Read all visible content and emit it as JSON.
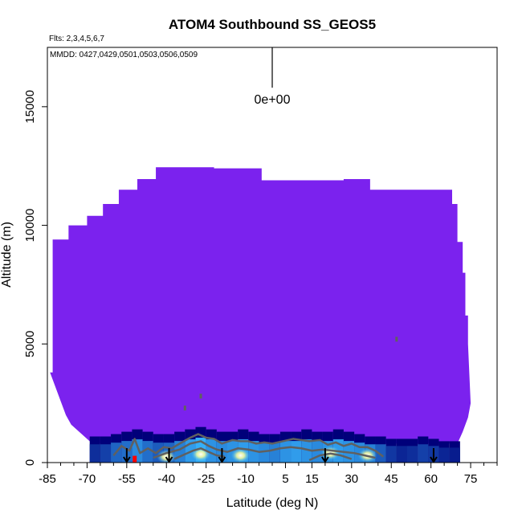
{
  "chart_data": {
    "type": "heatmap",
    "title": "ATOM4 Southbound SS_GEOS5",
    "subtitle_flights": "Flts: 2,3,4,5,6,7",
    "subtitle_dates": "MMDD: 0427,0429,0501,0503,0506,0509",
    "xlabel": "Latitude (deg N)",
    "ylabel": "Altitude (m)",
    "xlim": [
      -85,
      85
    ],
    "ylim": [
      0,
      17500
    ],
    "x_ticks": [
      -85,
      -70,
      -55,
      -40,
      -25,
      -10,
      5,
      15,
      30,
      45,
      60,
      75
    ],
    "y_ticks": [
      0,
      5000,
      10000,
      15000
    ],
    "legend_label": "0e+00",
    "colors": {
      "background_field": "#7b22ee",
      "low_field": "#00007a",
      "high_field": "#38b8ff",
      "peak": "#ffffff",
      "contour": "#606060",
      "flight_start": "#ff0000",
      "arrow": "#000000"
    },
    "field_top_profile": [
      [
        -84,
        3800
      ],
      [
        -83,
        9400
      ],
      [
        -77,
        10000
      ],
      [
        -70,
        10400
      ],
      [
        -64,
        10900
      ],
      [
        -58,
        11500
      ],
      [
        -51,
        11950
      ],
      [
        -44,
        12450
      ],
      [
        -22,
        12400
      ],
      [
        -4,
        11900
      ],
      [
        27,
        11950
      ],
      [
        37,
        11500
      ],
      [
        65,
        11500
      ],
      [
        68,
        10900
      ],
      [
        70,
        9300
      ],
      [
        72,
        8000
      ],
      [
        73,
        6200
      ],
      [
        74,
        5000
      ]
    ],
    "field_bottom_profile": [
      [
        -84,
        3800
      ],
      [
        -82,
        3200
      ],
      [
        -80,
        2600
      ],
      [
        -78,
        2000
      ],
      [
        -76,
        1600
      ],
      [
        -73,
        1300
      ],
      [
        -70,
        1000
      ],
      [
        -68,
        800
      ],
      [
        70,
        800
      ],
      [
        72,
        1300
      ],
      [
        74,
        1900
      ],
      [
        75,
        2500
      ],
      [
        74,
        5000
      ]
    ],
    "boundary_layer_cells": [
      {
        "lat": -67,
        "alt_top": 1100,
        "level": 0.25
      },
      {
        "lat": -63,
        "alt_top": 1100,
        "level": 0.35
      },
      {
        "lat": -59,
        "alt_top": 1200,
        "level": 0.55
      },
      {
        "lat": -55,
        "alt_top": 1300,
        "level": 0.6
      },
      {
        "lat": -51,
        "alt_top": 1400,
        "level": 0.75
      },
      {
        "lat": -47,
        "alt_top": 1300,
        "level": 0.6
      },
      {
        "lat": -43,
        "alt_top": 1200,
        "level": 0.5
      },
      {
        "lat": -39,
        "alt_top": 1200,
        "level": 0.55
      },
      {
        "lat": -35,
        "alt_top": 1300,
        "level": 0.7
      },
      {
        "lat": -31,
        "alt_top": 1400,
        "level": 0.85
      },
      {
        "lat": -27,
        "alt_top": 1500,
        "level": 0.95
      },
      {
        "lat": -23,
        "alt_top": 1400,
        "level": 0.8
      },
      {
        "lat": -19,
        "alt_top": 1300,
        "level": 0.75
      },
      {
        "lat": -15,
        "alt_top": 1300,
        "level": 0.8
      },
      {
        "lat": -11,
        "alt_top": 1400,
        "level": 0.85
      },
      {
        "lat": -7,
        "alt_top": 1300,
        "level": 0.8
      },
      {
        "lat": -3,
        "alt_top": 1200,
        "level": 0.75
      },
      {
        "lat": 1,
        "alt_top": 1200,
        "level": 0.7
      },
      {
        "lat": 5,
        "alt_top": 1300,
        "level": 0.8
      },
      {
        "lat": 9,
        "alt_top": 1300,
        "level": 0.85
      },
      {
        "lat": 13,
        "alt_top": 1400,
        "level": 0.8
      },
      {
        "lat": 17,
        "alt_top": 1300,
        "level": 0.75
      },
      {
        "lat": 21,
        "alt_top": 1300,
        "level": 0.8
      },
      {
        "lat": 25,
        "alt_top": 1400,
        "level": 0.85
      },
      {
        "lat": 29,
        "alt_top": 1300,
        "level": 0.8
      },
      {
        "lat": 33,
        "alt_top": 1200,
        "level": 0.75
      },
      {
        "lat": 37,
        "alt_top": 1100,
        "level": 0.7
      },
      {
        "lat": 41,
        "alt_top": 1100,
        "level": 0.5
      },
      {
        "lat": 45,
        "alt_top": 1000,
        "level": 0.3
      },
      {
        "lat": 49,
        "alt_top": 1000,
        "level": 0.2
      },
      {
        "lat": 53,
        "alt_top": 1000,
        "level": 0.25
      },
      {
        "lat": 57,
        "alt_top": 1100,
        "level": 0.35
      },
      {
        "lat": 61,
        "alt_top": 1000,
        "level": 0.3
      },
      {
        "lat": 65,
        "alt_top": 900,
        "level": 0.2
      },
      {
        "lat": 69,
        "alt_top": 900,
        "level": 0.15
      }
    ],
    "hot_spots": [
      {
        "lat": -27,
        "alt": 350
      },
      {
        "lat": -12,
        "alt": 300
      },
      {
        "lat": 22,
        "alt": 400
      },
      {
        "lat": 36,
        "alt": 300
      },
      {
        "lat": -40,
        "alt": 250
      }
    ],
    "contour_lines": [
      [
        [
          -60,
          300
        ],
        [
          -57,
          700
        ],
        [
          -54,
          500
        ],
        [
          -52,
          1000
        ],
        [
          -50,
          400
        ],
        [
          -47,
          600
        ],
        [
          -44,
          400
        ],
        [
          -41,
          650
        ],
        [
          -38,
          600
        ],
        [
          -35,
          800
        ],
        [
          -31,
          1050
        ],
        [
          -28,
          1200
        ],
        [
          -25,
          1050
        ],
        [
          -22,
          1000
        ],
        [
          -19,
          800
        ],
        [
          -15,
          950
        ],
        [
          -12,
          900
        ],
        [
          -9,
          900
        ],
        [
          -6,
          800
        ],
        [
          -3,
          850
        ],
        [
          0,
          800
        ],
        [
          4,
          900
        ],
        [
          8,
          1000
        ],
        [
          11,
          950
        ],
        [
          14,
          900
        ],
        [
          18,
          950
        ],
        [
          21,
          750
        ],
        [
          24,
          850
        ],
        [
          27,
          700
        ],
        [
          30,
          800
        ],
        [
          33,
          650
        ],
        [
          36,
          650
        ],
        [
          39,
          500
        ],
        [
          42,
          250
        ]
      ],
      [
        [
          -45,
          200
        ],
        [
          -40,
          400
        ],
        [
          -35,
          550
        ],
        [
          -31,
          800
        ],
        [
          -27,
          900
        ],
        [
          -24,
          700
        ],
        [
          -21,
          550
        ],
        [
          -17,
          450
        ],
        [
          -13,
          600
        ],
        [
          -9,
          550
        ],
        [
          -5,
          450
        ],
        [
          -1,
          500
        ],
        [
          3,
          600
        ],
        [
          7,
          650
        ],
        [
          11,
          600
        ],
        [
          15,
          500
        ],
        [
          19,
          550
        ],
        [
          23,
          500
        ],
        [
          27,
          450
        ],
        [
          31,
          400
        ],
        [
          35,
          300
        ],
        [
          39,
          200
        ]
      ],
      [
        [
          -37,
          150
        ],
        [
          -33,
          350
        ],
        [
          -30,
          500
        ],
        [
          -27,
          600
        ],
        [
          -24,
          450
        ],
        [
          -21,
          300
        ],
        [
          -18,
          250
        ]
      ],
      [
        [
          14,
          100
        ],
        [
          18,
          300
        ],
        [
          22,
          380
        ],
        [
          26,
          300
        ],
        [
          30,
          150
        ]
      ]
    ],
    "flight_arrows": [
      {
        "lat": -55,
        "alt": 0
      },
      {
        "lat": -39,
        "alt": 0
      },
      {
        "lat": -19,
        "alt": 0
      },
      {
        "lat": 20,
        "alt": 0
      },
      {
        "lat": 61,
        "alt": 0
      }
    ],
    "flight_start_marker": {
      "lat": -52,
      "alt": 150
    },
    "scatter_marks": [
      {
        "lat": -27,
        "alt": 2800
      },
      {
        "lat": -33,
        "alt": 2300
      },
      {
        "lat": 47,
        "alt": 5200
      }
    ],
    "legend_bar": {
      "x": 0,
      "alt_top": 17500,
      "alt_bottom": 15800
    }
  }
}
